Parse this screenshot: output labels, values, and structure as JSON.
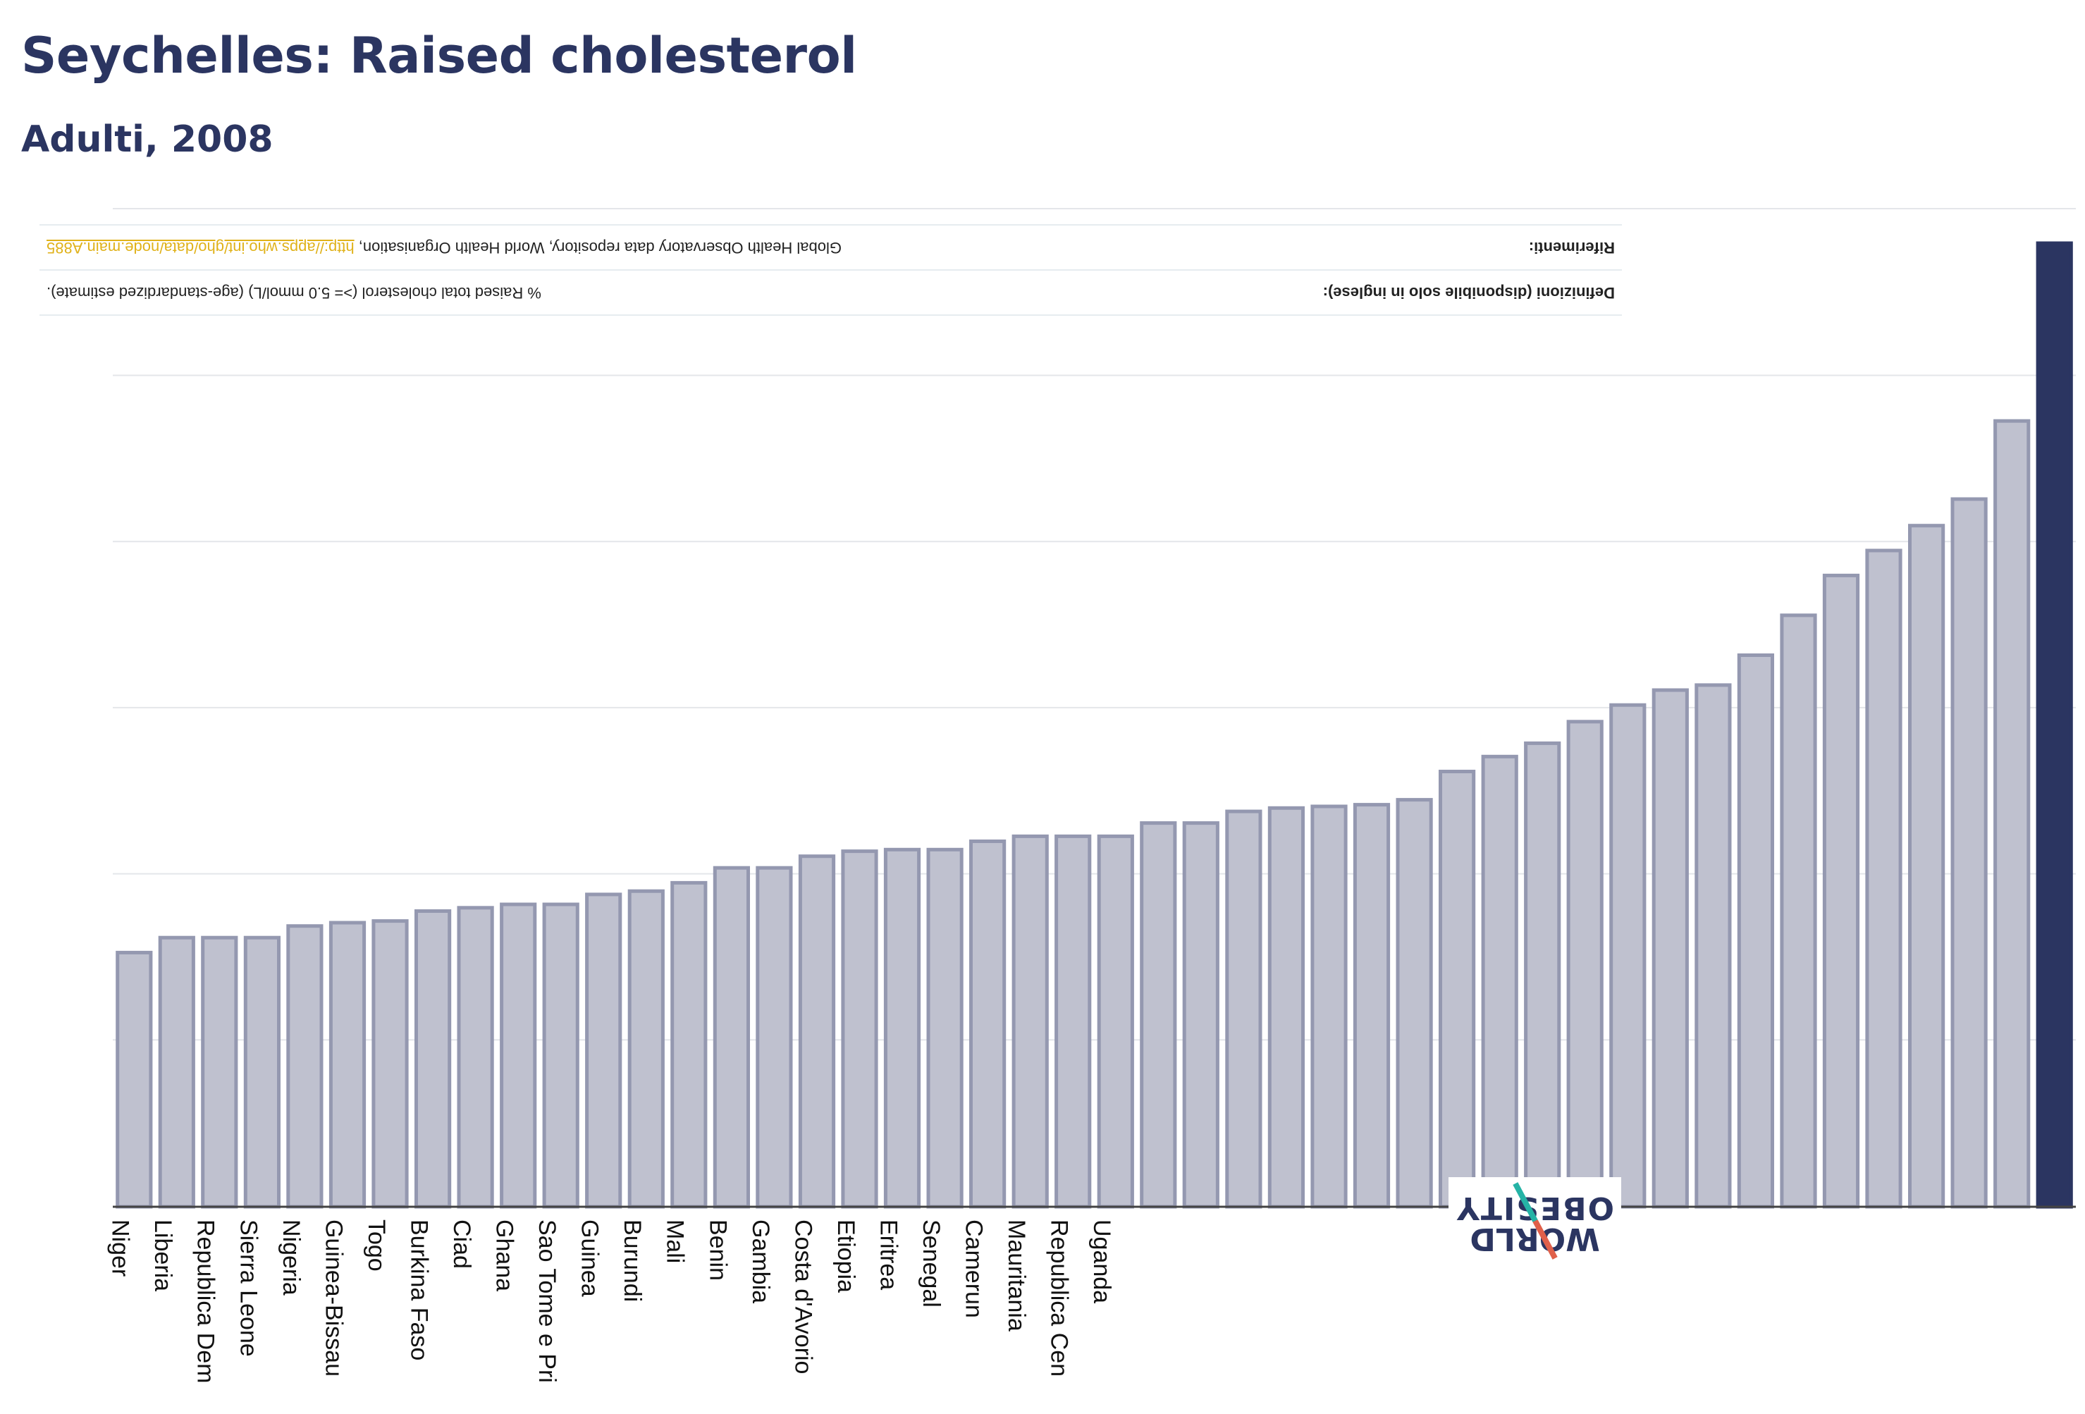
{
  "header": {
    "title": "Seychelles: Raised cholesterol",
    "subtitle": "Adulti, 2008"
  },
  "notes": {
    "definitions_label": "Definizioni (disponibile solo in inglese):",
    "definitions_text": "% Raised total cholesterol (>= 5.0 mmol/L) (age-standardized estimate).",
    "references_label": "Riferimenti:",
    "references_text": "Global Health Observatory data repository, World Health Organisation,",
    "references_link": "http://apps.who.int/gho/data/node.main.A885"
  },
  "logo": {
    "line1": "WORLD",
    "line2": "OBESITY"
  },
  "colors": {
    "bar": "#bfc1cf",
    "bar_border": "#9498b0",
    "highlight": "#2b3561",
    "grid": "#e4e6ea"
  },
  "chart_data": {
    "type": "bar",
    "categories": [
      "Niger",
      "Liberia",
      "Republica Dem",
      "Sierra Leone",
      "Nigeria",
      "Guinea-Bissau",
      "Togo",
      "Burkina Faso",
      "Ciad",
      "Ghana",
      "Sao Tome e Pri",
      "Guinea",
      "Burundi",
      "Mali",
      "Benin",
      "Gambia",
      "Costa d'Avorio",
      "Etiopia",
      "Eritrea",
      "Senegal",
      "Camerun",
      "Mauritania",
      "Republica Cen",
      "Uganda",
      "",
      "",
      "",
      "",
      "",
      "",
      "",
      "",
      "",
      "",
      "",
      "",
      "",
      "",
      "",
      "",
      "",
      "",
      "",
      "",
      "",
      ""
    ],
    "values": [
      15.3,
      16.2,
      16.2,
      16.2,
      16.9,
      17.1,
      17.2,
      17.8,
      18.0,
      18.2,
      18.2,
      18.8,
      19.0,
      19.5,
      20.4,
      20.4,
      21.1,
      21.4,
      21.5,
      21.5,
      22.0,
      22.3,
      22.3,
      22.3,
      23.1,
      23.1,
      23.8,
      24.0,
      24.1,
      24.2,
      24.5,
      26.2,
      27.1,
      27.9,
      29.2,
      30.2,
      31.1,
      31.4,
      33.2,
      35.6,
      38.0,
      39.5,
      41.0,
      42.6,
      47.3,
      58.0
    ],
    "highlight_index": 45,
    "ylim": [
      0,
      58.0
    ],
    "grid_step": 10,
    "grid": true
  }
}
